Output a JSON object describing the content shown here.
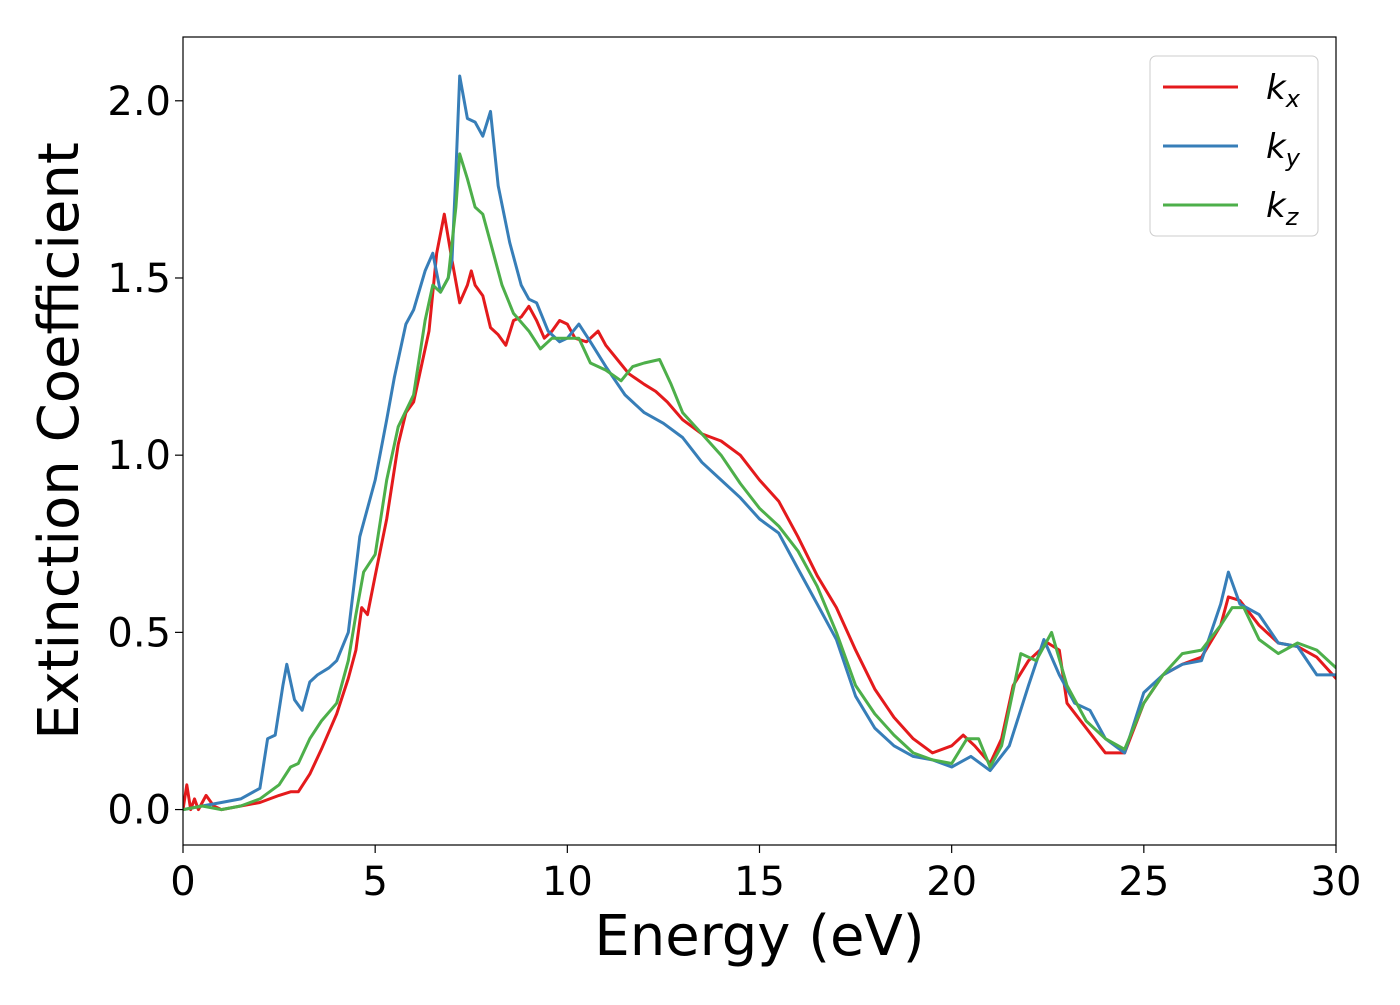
{
  "chart_data": {
    "type": "line",
    "title": "",
    "xlabel": "Energy (eV)",
    "ylabel": "Extinction Coefficient",
    "xlim": [
      0,
      30
    ],
    "ylim": [
      -0.1,
      2.18
    ],
    "xticks": [
      0,
      5,
      10,
      15,
      20,
      25,
      30
    ],
    "xtick_labels": [
      "0",
      "5",
      "10",
      "15",
      "20",
      "25",
      "30"
    ],
    "yticks": [
      0.0,
      0.5,
      1.0,
      1.5,
      2.0
    ],
    "ytick_labels": [
      "0.0",
      "0.5",
      "1.0",
      "1.5",
      "2.0"
    ],
    "grid": false,
    "legend_position": "top-right",
    "series": [
      {
        "name": "k_x",
        "color": "#e41a1c",
        "points": [
          [
            0,
            0.0
          ],
          [
            0.1,
            0.07
          ],
          [
            0.2,
            0.0
          ],
          [
            0.3,
            0.03
          ],
          [
            0.4,
            0.0
          ],
          [
            0.6,
            0.04
          ],
          [
            0.8,
            0.01
          ],
          [
            1.0,
            0.0
          ],
          [
            1.5,
            0.01
          ],
          [
            2.0,
            0.02
          ],
          [
            2.5,
            0.04
          ],
          [
            2.8,
            0.05
          ],
          [
            3.0,
            0.05
          ],
          [
            3.3,
            0.1
          ],
          [
            3.6,
            0.17
          ],
          [
            4.0,
            0.27
          ],
          [
            4.3,
            0.37
          ],
          [
            4.5,
            0.45
          ],
          [
            4.65,
            0.57
          ],
          [
            4.8,
            0.55
          ],
          [
            5.0,
            0.66
          ],
          [
            5.3,
            0.82
          ],
          [
            5.6,
            1.03
          ],
          [
            5.8,
            1.12
          ],
          [
            6.0,
            1.15
          ],
          [
            6.2,
            1.25
          ],
          [
            6.4,
            1.35
          ],
          [
            6.6,
            1.57
          ],
          [
            6.8,
            1.68
          ],
          [
            7.0,
            1.55
          ],
          [
            7.2,
            1.43
          ],
          [
            7.4,
            1.48
          ],
          [
            7.5,
            1.52
          ],
          [
            7.6,
            1.48
          ],
          [
            7.8,
            1.45
          ],
          [
            8.0,
            1.36
          ],
          [
            8.2,
            1.34
          ],
          [
            8.4,
            1.31
          ],
          [
            8.6,
            1.38
          ],
          [
            8.8,
            1.39
          ],
          [
            9.0,
            1.42
          ],
          [
            9.2,
            1.38
          ],
          [
            9.4,
            1.33
          ],
          [
            9.6,
            1.35
          ],
          [
            9.8,
            1.38
          ],
          [
            10.0,
            1.37
          ],
          [
            10.2,
            1.33
          ],
          [
            10.5,
            1.32
          ],
          [
            10.8,
            1.35
          ],
          [
            11.0,
            1.31
          ],
          [
            11.3,
            1.27
          ],
          [
            11.6,
            1.23
          ],
          [
            12.0,
            1.2
          ],
          [
            12.3,
            1.18
          ],
          [
            12.6,
            1.15
          ],
          [
            13.0,
            1.1
          ],
          [
            13.5,
            1.06
          ],
          [
            14.0,
            1.04
          ],
          [
            14.5,
            1.0
          ],
          [
            15.0,
            0.93
          ],
          [
            15.5,
            0.87
          ],
          [
            16.0,
            0.77
          ],
          [
            16.5,
            0.66
          ],
          [
            17.0,
            0.57
          ],
          [
            17.5,
            0.45
          ],
          [
            18.0,
            0.34
          ],
          [
            18.5,
            0.26
          ],
          [
            19.0,
            0.2
          ],
          [
            19.5,
            0.16
          ],
          [
            20.0,
            0.18
          ],
          [
            20.3,
            0.21
          ],
          [
            20.6,
            0.18
          ],
          [
            21.0,
            0.13
          ],
          [
            21.3,
            0.2
          ],
          [
            21.6,
            0.35
          ],
          [
            22.0,
            0.42
          ],
          [
            22.5,
            0.47
          ],
          [
            22.8,
            0.45
          ],
          [
            23.0,
            0.3
          ],
          [
            23.5,
            0.23
          ],
          [
            24.0,
            0.16
          ],
          [
            24.5,
            0.16
          ],
          [
            25.0,
            0.3
          ],
          [
            25.5,
            0.38
          ],
          [
            26.0,
            0.41
          ],
          [
            26.5,
            0.43
          ],
          [
            27.0,
            0.52
          ],
          [
            27.2,
            0.6
          ],
          [
            27.5,
            0.59
          ],
          [
            28.0,
            0.52
          ],
          [
            28.5,
            0.47
          ],
          [
            29.0,
            0.46
          ],
          [
            29.5,
            0.43
          ],
          [
            30.0,
            0.37
          ]
        ]
      },
      {
        "name": "k_y",
        "color": "#377eb8",
        "points": [
          [
            0,
            0.0
          ],
          [
            0.5,
            0.01
          ],
          [
            1.0,
            0.02
          ],
          [
            1.5,
            0.03
          ],
          [
            2.0,
            0.06
          ],
          [
            2.2,
            0.2
          ],
          [
            2.4,
            0.21
          ],
          [
            2.6,
            0.35
          ],
          [
            2.7,
            0.41
          ],
          [
            2.9,
            0.31
          ],
          [
            3.1,
            0.28
          ],
          [
            3.3,
            0.36
          ],
          [
            3.5,
            0.38
          ],
          [
            3.8,
            0.4
          ],
          [
            4.0,
            0.42
          ],
          [
            4.3,
            0.5
          ],
          [
            4.6,
            0.77
          ],
          [
            5.0,
            0.93
          ],
          [
            5.3,
            1.1
          ],
          [
            5.5,
            1.22
          ],
          [
            5.8,
            1.37
          ],
          [
            6.0,
            1.41
          ],
          [
            6.3,
            1.52
          ],
          [
            6.5,
            1.57
          ],
          [
            6.7,
            1.46
          ],
          [
            6.9,
            1.5
          ],
          [
            7.0,
            1.55
          ],
          [
            7.1,
            1.8
          ],
          [
            7.2,
            2.07
          ],
          [
            7.4,
            1.95
          ],
          [
            7.6,
            1.94
          ],
          [
            7.8,
            1.9
          ],
          [
            8.0,
            1.97
          ],
          [
            8.2,
            1.76
          ],
          [
            8.5,
            1.6
          ],
          [
            8.8,
            1.48
          ],
          [
            9.0,
            1.44
          ],
          [
            9.2,
            1.43
          ],
          [
            9.5,
            1.35
          ],
          [
            9.8,
            1.32
          ],
          [
            10.0,
            1.33
          ],
          [
            10.3,
            1.37
          ],
          [
            10.6,
            1.32
          ],
          [
            11.0,
            1.25
          ],
          [
            11.5,
            1.17
          ],
          [
            12.0,
            1.12
          ],
          [
            12.5,
            1.09
          ],
          [
            13.0,
            1.05
          ],
          [
            13.5,
            0.98
          ],
          [
            14.0,
            0.93
          ],
          [
            14.5,
            0.88
          ],
          [
            15.0,
            0.82
          ],
          [
            15.5,
            0.78
          ],
          [
            16.0,
            0.68
          ],
          [
            16.5,
            0.58
          ],
          [
            17.0,
            0.48
          ],
          [
            17.5,
            0.32
          ],
          [
            18.0,
            0.23
          ],
          [
            18.5,
            0.18
          ],
          [
            19.0,
            0.15
          ],
          [
            19.5,
            0.14
          ],
          [
            20.0,
            0.12
          ],
          [
            20.5,
            0.15
          ],
          [
            21.0,
            0.11
          ],
          [
            21.5,
            0.18
          ],
          [
            22.0,
            0.35
          ],
          [
            22.4,
            0.48
          ],
          [
            22.8,
            0.38
          ],
          [
            23.2,
            0.3
          ],
          [
            23.6,
            0.28
          ],
          [
            24.0,
            0.2
          ],
          [
            24.5,
            0.16
          ],
          [
            25.0,
            0.33
          ],
          [
            25.5,
            0.38
          ],
          [
            26.0,
            0.41
          ],
          [
            26.5,
            0.42
          ],
          [
            27.0,
            0.58
          ],
          [
            27.2,
            0.67
          ],
          [
            27.5,
            0.58
          ],
          [
            28.0,
            0.55
          ],
          [
            28.5,
            0.47
          ],
          [
            29.0,
            0.46
          ],
          [
            29.5,
            0.38
          ],
          [
            30.0,
            0.38
          ]
        ]
      },
      {
        "name": "k_z",
        "color": "#4daf4a",
        "points": [
          [
            0,
            0.0
          ],
          [
            0.5,
            0.01
          ],
          [
            1.0,
            0.0
          ],
          [
            1.5,
            0.01
          ],
          [
            2.0,
            0.03
          ],
          [
            2.5,
            0.07
          ],
          [
            2.8,
            0.12
          ],
          [
            3.0,
            0.13
          ],
          [
            3.3,
            0.2
          ],
          [
            3.6,
            0.25
          ],
          [
            4.0,
            0.3
          ],
          [
            4.3,
            0.42
          ],
          [
            4.5,
            0.55
          ],
          [
            4.7,
            0.67
          ],
          [
            5.0,
            0.72
          ],
          [
            5.3,
            0.93
          ],
          [
            5.6,
            1.08
          ],
          [
            6.0,
            1.17
          ],
          [
            6.3,
            1.38
          ],
          [
            6.5,
            1.48
          ],
          [
            6.7,
            1.46
          ],
          [
            6.9,
            1.5
          ],
          [
            7.1,
            1.7
          ],
          [
            7.2,
            1.85
          ],
          [
            7.4,
            1.78
          ],
          [
            7.6,
            1.7
          ],
          [
            7.8,
            1.68
          ],
          [
            8.0,
            1.6
          ],
          [
            8.3,
            1.48
          ],
          [
            8.6,
            1.4
          ],
          [
            9.0,
            1.35
          ],
          [
            9.3,
            1.3
          ],
          [
            9.6,
            1.33
          ],
          [
            10.0,
            1.33
          ],
          [
            10.3,
            1.33
          ],
          [
            10.6,
            1.26
          ],
          [
            11.0,
            1.24
          ],
          [
            11.4,
            1.21
          ],
          [
            11.7,
            1.25
          ],
          [
            12.0,
            1.26
          ],
          [
            12.4,
            1.27
          ],
          [
            12.7,
            1.2
          ],
          [
            13.0,
            1.12
          ],
          [
            13.5,
            1.06
          ],
          [
            14.0,
            1.0
          ],
          [
            14.5,
            0.92
          ],
          [
            15.0,
            0.85
          ],
          [
            15.5,
            0.8
          ],
          [
            16.0,
            0.73
          ],
          [
            16.5,
            0.63
          ],
          [
            17.0,
            0.5
          ],
          [
            17.5,
            0.35
          ],
          [
            18.0,
            0.27
          ],
          [
            18.5,
            0.21
          ],
          [
            19.0,
            0.16
          ],
          [
            19.5,
            0.14
          ],
          [
            20.0,
            0.13
          ],
          [
            20.4,
            0.2
          ],
          [
            20.7,
            0.2
          ],
          [
            21.0,
            0.12
          ],
          [
            21.3,
            0.18
          ],
          [
            21.8,
            0.44
          ],
          [
            22.2,
            0.42
          ],
          [
            22.6,
            0.5
          ],
          [
            23.0,
            0.35
          ],
          [
            23.5,
            0.25
          ],
          [
            24.0,
            0.2
          ],
          [
            24.5,
            0.17
          ],
          [
            25.0,
            0.3
          ],
          [
            25.5,
            0.38
          ],
          [
            26.0,
            0.44
          ],
          [
            26.5,
            0.45
          ],
          [
            27.0,
            0.52
          ],
          [
            27.3,
            0.57
          ],
          [
            27.6,
            0.57
          ],
          [
            28.0,
            0.48
          ],
          [
            28.5,
            0.44
          ],
          [
            29.0,
            0.47
          ],
          [
            29.5,
            0.45
          ],
          [
            30.0,
            0.4
          ]
        ]
      }
    ]
  }
}
